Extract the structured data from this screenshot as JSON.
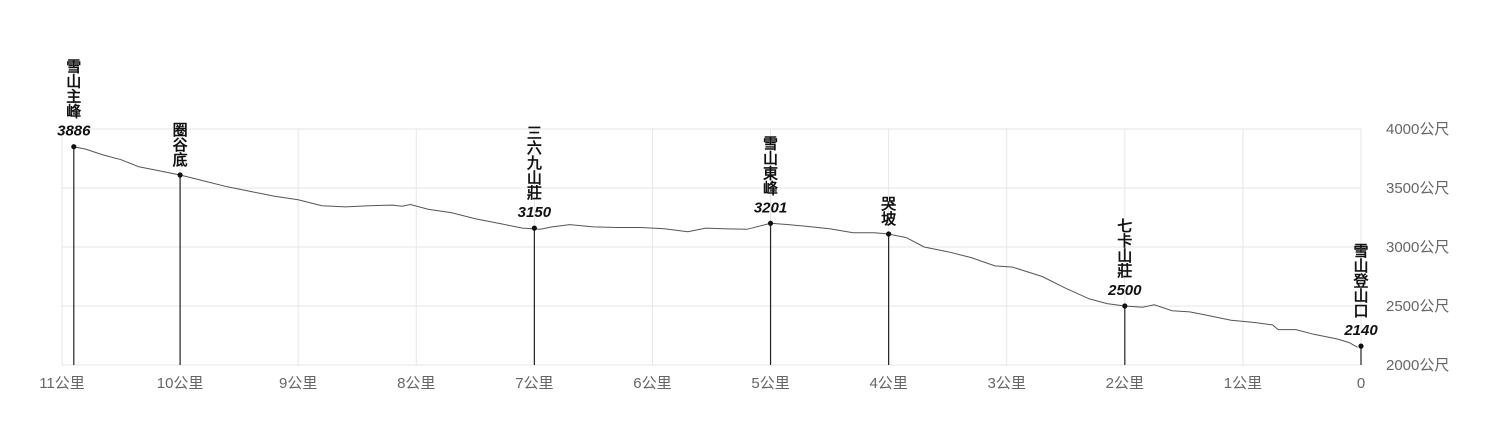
{
  "chart_data": {
    "type": "area",
    "x_direction": "reversed",
    "xlim": [
      0,
      11
    ],
    "ylim": [
      2000,
      4000
    ],
    "x_unit_suffix": "公里",
    "y_unit_suffix": "公尺",
    "x_ticks": [
      "11公里",
      "10公里",
      "9公里",
      "8公里",
      "7公里",
      "6公里",
      "5公里",
      "4公里",
      "3公里",
      "2公里",
      "1公里",
      "0"
    ],
    "y_ticks": [
      "4000公尺",
      "3500公尺",
      "3000公尺",
      "2500公尺",
      "2000公尺"
    ],
    "grid": true,
    "profile": [
      {
        "x": 10.9,
        "y": 3850
      },
      {
        "x": 10.8,
        "y": 3830
      },
      {
        "x": 10.65,
        "y": 3780
      },
      {
        "x": 10.5,
        "y": 3740
      },
      {
        "x": 10.35,
        "y": 3680
      },
      {
        "x": 10.2,
        "y": 3650
      },
      {
        "x": 10.0,
        "y": 3610
      },
      {
        "x": 9.8,
        "y": 3560
      },
      {
        "x": 9.6,
        "y": 3510
      },
      {
        "x": 9.4,
        "y": 3470
      },
      {
        "x": 9.2,
        "y": 3430
      },
      {
        "x": 9.0,
        "y": 3400
      },
      {
        "x": 8.8,
        "y": 3350
      },
      {
        "x": 8.6,
        "y": 3340
      },
      {
        "x": 8.4,
        "y": 3350
      },
      {
        "x": 8.2,
        "y": 3355
      },
      {
        "x": 8.12,
        "y": 3345
      },
      {
        "x": 8.05,
        "y": 3360
      },
      {
        "x": 7.9,
        "y": 3320
      },
      {
        "x": 7.7,
        "y": 3290
      },
      {
        "x": 7.5,
        "y": 3240
      },
      {
        "x": 7.3,
        "y": 3200
      },
      {
        "x": 7.1,
        "y": 3160
      },
      {
        "x": 6.95,
        "y": 3150
      },
      {
        "x": 6.85,
        "y": 3170
      },
      {
        "x": 6.7,
        "y": 3190
      },
      {
        "x": 6.5,
        "y": 3170
      },
      {
        "x": 6.3,
        "y": 3165
      },
      {
        "x": 6.1,
        "y": 3165
      },
      {
        "x": 5.9,
        "y": 3155
      },
      {
        "x": 5.7,
        "y": 3130
      },
      {
        "x": 5.55,
        "y": 3160
      },
      {
        "x": 5.4,
        "y": 3155
      },
      {
        "x": 5.2,
        "y": 3150
      },
      {
        "x": 5.0,
        "y": 3201
      },
      {
        "x": 4.85,
        "y": 3190
      },
      {
        "x": 4.7,
        "y": 3175
      },
      {
        "x": 4.5,
        "y": 3155
      },
      {
        "x": 4.3,
        "y": 3120
      },
      {
        "x": 4.12,
        "y": 3120
      },
      {
        "x": 4.0,
        "y": 3110
      },
      {
        "x": 3.85,
        "y": 3080
      },
      {
        "x": 3.7,
        "y": 3000
      },
      {
        "x": 3.5,
        "y": 2960
      },
      {
        "x": 3.3,
        "y": 2910
      },
      {
        "x": 3.1,
        "y": 2840
      },
      {
        "x": 2.95,
        "y": 2830
      },
      {
        "x": 2.7,
        "y": 2750
      },
      {
        "x": 2.5,
        "y": 2650
      },
      {
        "x": 2.3,
        "y": 2560
      },
      {
        "x": 2.15,
        "y": 2520
      },
      {
        "x": 2.0,
        "y": 2500
      },
      {
        "x": 1.85,
        "y": 2490
      },
      {
        "x": 1.75,
        "y": 2510
      },
      {
        "x": 1.6,
        "y": 2460
      },
      {
        "x": 1.45,
        "y": 2450
      },
      {
        "x": 1.3,
        "y": 2420
      },
      {
        "x": 1.1,
        "y": 2380
      },
      {
        "x": 0.9,
        "y": 2360
      },
      {
        "x": 0.75,
        "y": 2340
      },
      {
        "x": 0.7,
        "y": 2300
      },
      {
        "x": 0.55,
        "y": 2300
      },
      {
        "x": 0.4,
        "y": 2260
      },
      {
        "x": 0.2,
        "y": 2220
      },
      {
        "x": 0.1,
        "y": 2190
      },
      {
        "x": 0.03,
        "y": 2150
      }
    ],
    "waypoints": [
      {
        "name": "雪山主峰",
        "elevation": "3886",
        "x": 10.9,
        "y": 3850
      },
      {
        "name": "圈谷底",
        "elevation": "",
        "x": 10.0,
        "y": 3610
      },
      {
        "name": "三六九山莊",
        "elevation": "3150",
        "x": 7.0,
        "y": 3160
      },
      {
        "name": "雪山東峰",
        "elevation": "3201",
        "x": 5.0,
        "y": 3201
      },
      {
        "name": "哭坡",
        "elevation": "",
        "x": 4.0,
        "y": 3110
      },
      {
        "name": "七卡山莊",
        "elevation": "2500",
        "x": 2.0,
        "y": 2500
      },
      {
        "name": "雪山登山口",
        "elevation": "2140",
        "x": 0.0,
        "y": 2160
      }
    ],
    "colors": {
      "line": "#555555",
      "grid": "#e6e6e6",
      "text": "#111111",
      "tick": "#666666"
    }
  }
}
